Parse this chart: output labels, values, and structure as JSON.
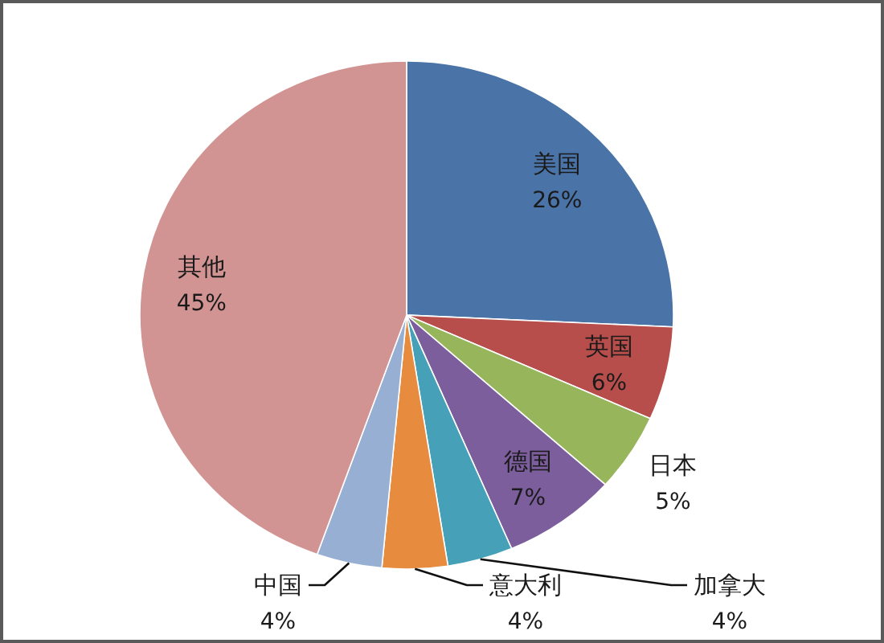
{
  "chart_data": {
    "type": "pie",
    "categories": [
      "美国",
      "英国",
      "日本",
      "德国",
      "加拿大",
      "意大利",
      "中国",
      "其他"
    ],
    "values": [
      26,
      6,
      5,
      7,
      4,
      4,
      4,
      45
    ],
    "colors": [
      "#4a74a8",
      "#b84e4b",
      "#97b65b",
      "#7c5e9d",
      "#45a0b8",
      "#e78b3e",
      "#98afd4",
      "#d29493"
    ],
    "value_labels": [
      "26%",
      "6%",
      "5%",
      "7%",
      "4%",
      "4%",
      "4%",
      "45%"
    ]
  }
}
